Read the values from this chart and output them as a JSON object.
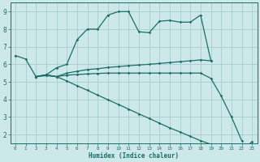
{
  "xlabel": "Humidex (Indice chaleur)",
  "background_color": "#cce8e8",
  "grid_color": "#aacccc",
  "line_color": "#1a6e6a",
  "xlim": [
    -0.5,
    23.5
  ],
  "ylim": [
    1.5,
    9.5
  ],
  "xticks": [
    0,
    1,
    2,
    3,
    4,
    5,
    6,
    7,
    8,
    9,
    10,
    11,
    12,
    13,
    14,
    15,
    16,
    17,
    18,
    19,
    20,
    21,
    22,
    23
  ],
  "yticks": [
    2,
    3,
    4,
    5,
    6,
    7,
    8,
    9
  ],
  "line1_x": [
    0,
    1,
    2,
    3,
    4,
    5,
    6,
    7,
    8,
    9,
    10,
    11,
    12,
    13,
    14,
    15,
    16,
    17,
    18,
    19
  ],
  "line1_y": [
    6.5,
    6.3,
    5.3,
    5.4,
    5.8,
    6.0,
    7.4,
    8.0,
    8.0,
    8.8,
    9.0,
    9.0,
    7.85,
    7.8,
    8.45,
    8.5,
    8.4,
    8.4,
    8.8,
    6.2
  ],
  "line2_x": [
    2,
    3,
    4,
    5,
    6,
    7,
    8,
    9,
    10,
    11,
    12,
    13,
    14,
    15,
    16,
    17,
    18,
    19
  ],
  "line2_y": [
    5.3,
    5.4,
    5.3,
    5.5,
    5.6,
    5.7,
    5.75,
    5.82,
    5.87,
    5.92,
    5.96,
    6.0,
    6.05,
    6.1,
    6.15,
    6.2,
    6.25,
    6.2
  ],
  "line3_x": [
    2,
    3,
    4,
    5,
    6,
    7,
    8,
    9,
    10,
    11,
    12,
    13,
    14,
    15,
    16,
    17,
    18,
    19,
    20,
    21,
    22
  ],
  "line3_y": [
    5.3,
    5.4,
    5.3,
    5.38,
    5.42,
    5.45,
    5.48,
    5.5,
    5.5,
    5.5,
    5.5,
    5.5,
    5.5,
    5.5,
    5.5,
    5.5,
    5.5,
    5.2,
    4.2,
    3.0,
    1.65
  ],
  "line4_x": [
    2,
    3,
    4,
    5,
    6,
    7,
    8,
    9,
    10,
    11,
    12,
    13,
    14,
    15,
    16,
    17,
    18,
    19,
    20,
    21,
    22,
    23
  ],
  "line4_y": [
    5.3,
    5.35,
    5.3,
    5.05,
    4.78,
    4.52,
    4.25,
    3.98,
    3.72,
    3.45,
    3.18,
    2.92,
    2.65,
    2.38,
    2.15,
    1.9,
    1.65,
    1.45,
    1.3,
    1.15,
    1.05,
    1.6
  ]
}
